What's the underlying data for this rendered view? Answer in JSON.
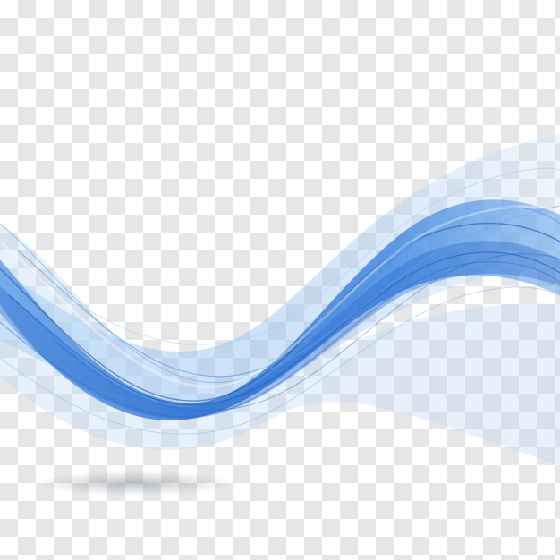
{
  "background": {
    "pattern": "transparency-checkerboard",
    "checker_color": "#e6e6e6",
    "base_color": "#ffffff"
  },
  "artwork": {
    "subject": "abstract-blue-wave",
    "colors": {
      "deep_blue": "#1f63c9",
      "mid_blue": "#3d86e0",
      "light_blue": "#8fbef0",
      "pale_blue": "#cfe3f8",
      "shadow": "#9aa3ad"
    }
  }
}
